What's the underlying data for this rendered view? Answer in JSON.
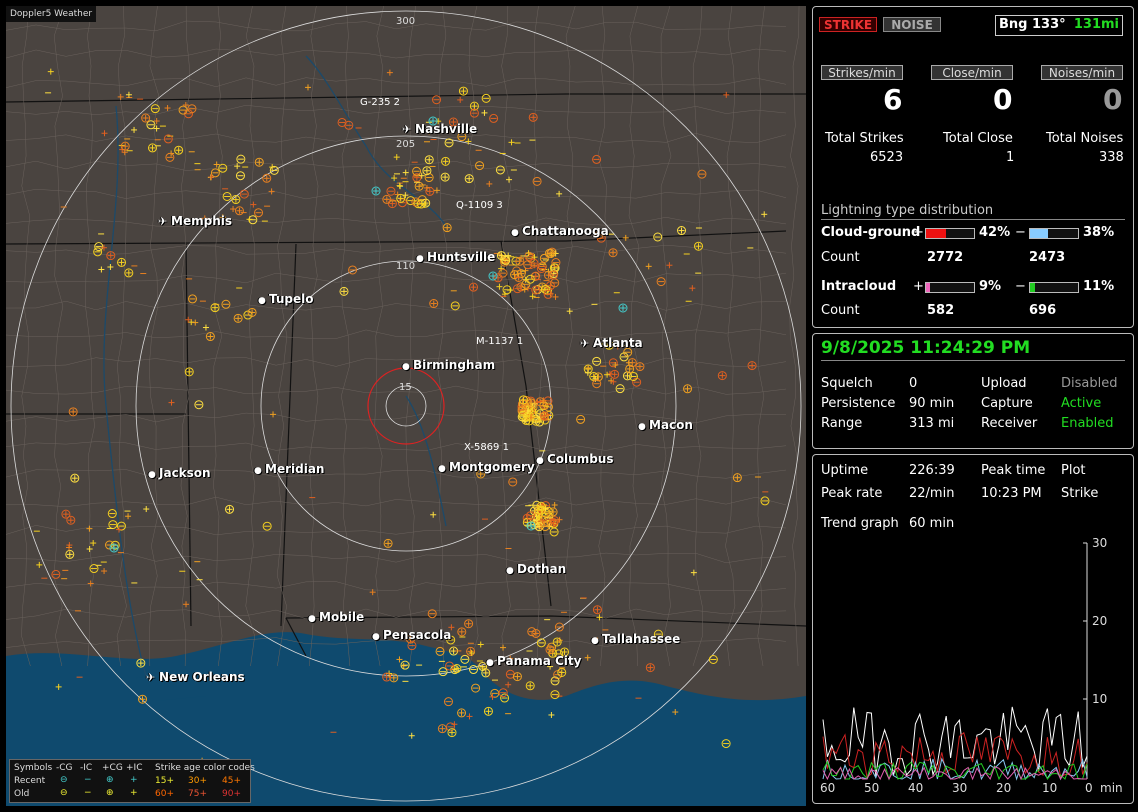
{
  "map": {
    "title": "Doppler5 Weather",
    "ring_labels": [
      "300",
      "205",
      "110",
      "15"
    ],
    "cities": [
      {
        "name": "Nashville",
        "airport": true
      },
      {
        "name": "Memphis",
        "airport": true
      },
      {
        "name": "Chattanooga",
        "airport": false
      },
      {
        "name": "Huntsville",
        "airport": false
      },
      {
        "name": "Tupelo",
        "airport": false
      },
      {
        "name": "Atlanta",
        "airport": true
      },
      {
        "name": "Birmingham",
        "airport": false
      },
      {
        "name": "Macon",
        "airport": false
      },
      {
        "name": "Jackson",
        "airport": false
      },
      {
        "name": "Meridian",
        "airport": false
      },
      {
        "name": "Montgomery",
        "airport": false
      },
      {
        "name": "Columbus",
        "airport": false
      },
      {
        "name": "Dothan",
        "airport": false
      },
      {
        "name": "Mobile",
        "airport": false
      },
      {
        "name": "Pensacola",
        "airport": false
      },
      {
        "name": "Tallahassee",
        "airport": false
      },
      {
        "name": "Panama City",
        "airport": false
      },
      {
        "name": "New Orleans",
        "airport": true
      }
    ],
    "storm_tags": [
      "G-235 2",
      "Q-1109 3",
      "M-1137 1",
      "X-5869 1"
    ],
    "legend": {
      "symbols_label": "Symbols",
      "cg_minus": "-CG",
      "ic_minus": "-IC",
      "cg_plus": "+CG",
      "ic_plus": "+IC",
      "age_label": "Strike age color codes",
      "recent": "Recent",
      "old": "Old",
      "ages": [
        "15+",
        "30+",
        "45+",
        "60+",
        "75+",
        "90+"
      ]
    }
  },
  "top": {
    "strike_tab": "STRIKE",
    "noise_tab": "NOISE",
    "bearing": "Bng 133°",
    "distance": "131mi",
    "strikes_per_min_label": "Strikes/min",
    "close_per_min_label": "Close/min",
    "noises_per_min_label": "Noises/min",
    "strikes_per_min": "6",
    "close_per_min": "0",
    "noises_per_min": "0",
    "total_strikes_label": "Total Strikes",
    "total_close_label": "Total Close",
    "total_noises_label": "Total Noises",
    "total_strikes": "6523",
    "total_close": "1",
    "total_noises": "338",
    "dist_title": "Lightning type distribution",
    "cg_label": "Cloud-ground",
    "ic_label": "Intracloud",
    "count_label": "Count",
    "plus": "+",
    "minus": "−",
    "cg_pos_pct": "42%",
    "cg_neg_pct": "38%",
    "ic_pos_pct": "9%",
    "ic_neg_pct": "11%",
    "cg_pos_count": "2772",
    "cg_neg_count": "2473",
    "ic_pos_count": "582",
    "ic_neg_count": "696"
  },
  "status": {
    "datetime": "9/8/2025 11:24:29 PM",
    "squelch_label": "Squelch",
    "squelch": "0",
    "persistence_label": "Persistence",
    "persistence": "90 min",
    "range_label": "Range",
    "range": "313 mi",
    "upload_label": "Upload",
    "upload": "Disabled",
    "capture_label": "Capture",
    "capture": "Active",
    "receiver_label": "Receiver",
    "receiver": "Enabled"
  },
  "trend": {
    "uptime_label": "Uptime",
    "uptime": "226:39",
    "peak_time_label": "Peak time",
    "peak_time": "10:23 PM",
    "plot_label": "Plot",
    "plot": "Strike",
    "peak_rate_label": "Peak rate",
    "peak_rate": "22/min",
    "trend_graph_label": "Trend graph",
    "trend_graph": "60 min",
    "y_ticks": [
      "30",
      "20",
      "10",
      "0"
    ],
    "x_ticks": [
      "60",
      "50",
      "40",
      "30",
      "20",
      "10",
      "0"
    ],
    "x_unit": "min"
  },
  "colors": {
    "strike_red": "#cc2222",
    "green": "#22dd22",
    "bar_red": "#ee1111",
    "bar_blue": "#88c8f0",
    "bar_pink": "#e060b0",
    "bar_green": "#22cc22"
  }
}
